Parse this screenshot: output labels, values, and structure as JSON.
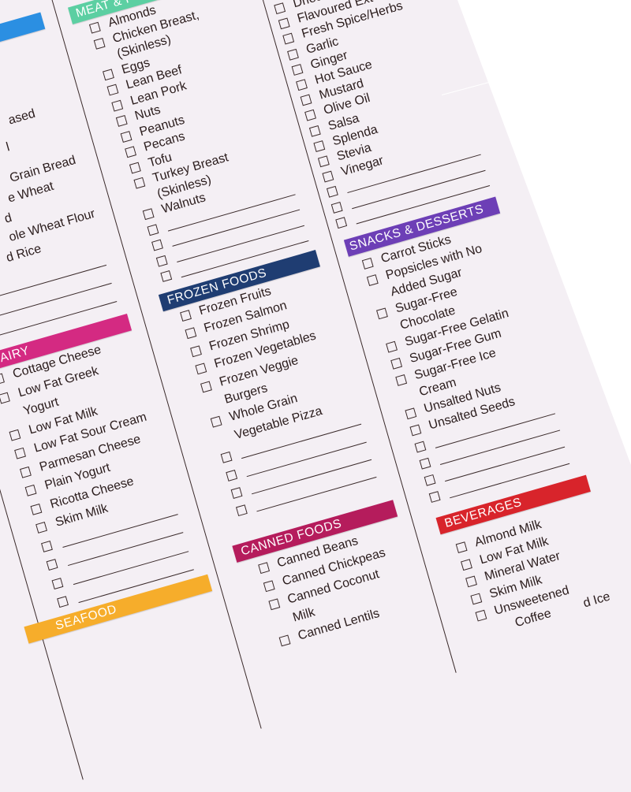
{
  "sections": [
    {
      "id": "grains",
      "header": "",
      "color": "#2b8fe2",
      "items": [
        {
          "text": "ased",
          "check": false
        },
        {
          "text": "l",
          "check": false
        },
        {
          "text": "Grain Bread",
          "check": false
        },
        {
          "text": "e Wheat",
          "check": false
        },
        {
          "text": "d",
          "check": false
        },
        {
          "text": "ole Wheat Flour",
          "check": false
        },
        {
          "text": "d Rice",
          "check": false
        },
        {
          "text": "",
          "check": false
        },
        {
          "text": "",
          "check": false
        },
        {
          "text": "",
          "check": false
        }
      ]
    },
    {
      "id": "dairy",
      "header": "DAIRY",
      "color": "#d42a82",
      "items": [
        {
          "text": "Cottage Cheese",
          "check": true
        },
        {
          "text": "Low Fat Greek",
          "check": true
        },
        {
          "text": "Yogurt",
          "check": false
        },
        {
          "text": "Low Fat Milk",
          "check": true
        },
        {
          "text": "Low Fat Sour Cream",
          "check": true
        },
        {
          "text": "Parmesan Cheese",
          "check": true
        },
        {
          "text": "Plain Yogurt",
          "check": true
        },
        {
          "text": "Ricotta Cheese",
          "check": true
        },
        {
          "text": "Skim Milk",
          "check": true
        },
        {
          "text": "",
          "check": true
        },
        {
          "text": "",
          "check": true
        },
        {
          "text": "",
          "check": true
        },
        {
          "text": "",
          "check": true
        }
      ]
    },
    {
      "id": "seafood",
      "header": "SEAFOOD",
      "color": "#f6ad2b",
      "items": []
    },
    {
      "id": "meat",
      "header": "MEAT & P",
      "color": "#5ccfa2",
      "items": [
        {
          "text": "Almonds",
          "check": true
        },
        {
          "text": "Chicken Breast,",
          "check": true
        },
        {
          "text": "(Skinless)",
          "check": false
        },
        {
          "text": "Eggs",
          "check": true
        },
        {
          "text": "Lean Beef",
          "check": true
        },
        {
          "text": "Lean Pork",
          "check": true
        },
        {
          "text": "Nuts",
          "check": true
        },
        {
          "text": "Peanuts",
          "check": true
        },
        {
          "text": "Pecans",
          "check": true
        },
        {
          "text": "Tofu",
          "check": true
        },
        {
          "text": "Turkey Breast",
          "check": true
        },
        {
          "text": "(Skinless)",
          "check": false
        },
        {
          "text": "Walnuts",
          "check": true
        },
        {
          "text": "",
          "check": true
        },
        {
          "text": "",
          "check": true
        },
        {
          "text": "",
          "check": true
        },
        {
          "text": "",
          "check": true
        }
      ]
    },
    {
      "id": "frozen",
      "header": "FROZEN FOODS",
      "color": "#1f3d72",
      "items": [
        {
          "text": "Frozen Fruits",
          "check": true
        },
        {
          "text": "Frozen Salmon",
          "check": true
        },
        {
          "text": "Frozen Shrimp",
          "check": true
        },
        {
          "text": "Frozen Vegetables",
          "check": true
        },
        {
          "text": "Frozen Veggie",
          "check": true
        },
        {
          "text": "Burgers",
          "check": false
        },
        {
          "text": "Whole Grain",
          "check": true
        },
        {
          "text": "Vegetable Pizza",
          "check": false
        },
        {
          "text": "",
          "check": true
        },
        {
          "text": "",
          "check": true
        },
        {
          "text": "",
          "check": true
        },
        {
          "text": "",
          "check": true
        }
      ]
    },
    {
      "id": "canned",
      "header": "CANNED FOODS",
      "color": "#b51c5c",
      "items": [
        {
          "text": "Canned Beans",
          "check": true
        },
        {
          "text": "Canned Chickpeas",
          "check": true
        },
        {
          "text": "Canned Coconut",
          "check": true
        },
        {
          "text": "Milk",
          "check": false
        },
        {
          "text": "Canned Lentils",
          "check": true
        }
      ]
    },
    {
      "id": "spices",
      "header": "",
      "color": "",
      "items": [
        {
          "text": "Dried",
          "check": true
        },
        {
          "text": "Flavoured Ext",
          "check": true
        },
        {
          "text": "Fresh Spice/Herbs",
          "check": true
        },
        {
          "text": "Garlic",
          "check": true
        },
        {
          "text": "Ginger",
          "check": true
        },
        {
          "text": "Hot Sauce",
          "check": true
        },
        {
          "text": "Mustard",
          "check": true
        },
        {
          "text": "Olive Oil",
          "check": true
        },
        {
          "text": "Salsa",
          "check": true
        },
        {
          "text": "Splenda",
          "check": true
        },
        {
          "text": "Stevia",
          "check": true
        },
        {
          "text": "Vinegar",
          "check": true
        },
        {
          "text": "",
          "check": true
        },
        {
          "text": "",
          "check": true
        },
        {
          "text": "",
          "check": true
        }
      ]
    },
    {
      "id": "snacks",
      "header": "SNACKS & DESSERTS",
      "color": "#6d3fb6",
      "items": [
        {
          "text": "Carrot Sticks",
          "check": true
        },
        {
          "text": "Popsicles with No",
          "check": true
        },
        {
          "text": "Added Sugar",
          "check": false
        },
        {
          "text": "Sugar-Free",
          "check": true
        },
        {
          "text": "Chocolate",
          "check": false
        },
        {
          "text": "Sugar-Free Gelatin",
          "check": true
        },
        {
          "text": "Sugar-Free Gum",
          "check": true
        },
        {
          "text": "Sugar-Free Ice",
          "check": true
        },
        {
          "text": "Cream",
          "check": false
        },
        {
          "text": "Unsalted Nuts",
          "check": true
        },
        {
          "text": "Unsalted Seeds",
          "check": true
        },
        {
          "text": "",
          "check": true
        },
        {
          "text": "",
          "check": true
        },
        {
          "text": "",
          "check": true
        },
        {
          "text": "",
          "check": true
        }
      ]
    },
    {
      "id": "beverages",
      "header": "BEVERAGES",
      "color": "#d8242b",
      "items": [
        {
          "text": "Almond Milk",
          "check": true
        },
        {
          "text": "Low Fat Milk",
          "check": true
        },
        {
          "text": "Mineral Water",
          "check": true
        },
        {
          "text": "Skim Milk",
          "check": true
        },
        {
          "text": "Unsweetened",
          "check": true
        },
        {
          "text": "Coffee",
          "check": false
        },
        {
          "text": "d Ice",
          "check": false
        }
      ]
    }
  ]
}
